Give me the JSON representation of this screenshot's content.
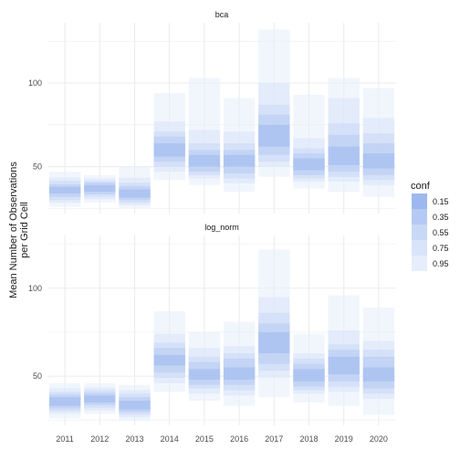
{
  "chart_data": {
    "type": "bar",
    "ylabel_line1": "Mean Number of Observations",
    "ylabel_line2": "per Grid Cell",
    "categories": [
      "2011",
      "2012",
      "2013",
      "2014",
      "2015",
      "2016",
      "2017",
      "2018",
      "2019",
      "2020"
    ],
    "y_ticks": [
      50,
      100
    ],
    "legend": {
      "title": "conf",
      "levels": [
        "0.15",
        "0.35",
        "0.55",
        "0.75",
        "0.95"
      ],
      "colors": [
        "#9db8ef",
        "#b5caf3",
        "#c8d8f6",
        "#d8e4f9",
        "#e6eefb"
      ],
      "position": "right"
    },
    "grid": true,
    "panels": [
      {
        "name": "bca",
        "ylim": [
          22,
          136
        ],
        "intervals": [
          {
            "x": "2011",
            "c15": [
              34,
              38
            ],
            "c35": [
              32,
              39.5
            ],
            "c55": [
              30,
              41.5
            ],
            "c75": [
              28.5,
              43.5
            ],
            "c95": [
              26,
              47
            ]
          },
          {
            "x": "2012",
            "c15": [
              35,
              39
            ],
            "c35": [
              33.5,
              40.5
            ],
            "c55": [
              32,
              41.5
            ],
            "c75": [
              30.5,
              43
            ],
            "c95": [
              28.5,
              45
            ]
          },
          {
            "x": "2013",
            "c15": [
              31.5,
              36.5
            ],
            "c35": [
              30,
              38.5
            ],
            "c55": [
              28.5,
              40.5
            ],
            "c75": [
              27,
              43.5
            ],
            "c95": [
              25,
              50
            ]
          },
          {
            "x": "2014",
            "c15": [
              56,
              64
            ],
            "c35": [
              53,
              68
            ],
            "c55": [
              50,
              71
            ],
            "c75": [
              47,
              77
            ],
            "c95": [
              42,
              94
            ]
          },
          {
            "x": "2015",
            "c15": [
              50,
              57
            ],
            "c35": [
              47,
              60
            ],
            "c55": [
              45,
              64
            ],
            "c75": [
              43,
              72
            ],
            "c95": [
              39,
              103
            ]
          },
          {
            "x": "2016",
            "c15": [
              50,
              57
            ],
            "c35": [
              46,
              60
            ],
            "c55": [
              43,
              64
            ],
            "c75": [
              40,
              71
            ],
            "c95": [
              35,
              91
            ]
          },
          {
            "x": "2017",
            "c15": [
              62,
              75
            ],
            "c35": [
              57,
              81
            ],
            "c55": [
              53,
              87
            ],
            "c75": [
              50,
              100
            ],
            "c95": [
              44,
              132
            ]
          },
          {
            "x": "2018",
            "c15": [
              48,
              55
            ],
            "c35": [
              45,
              58
            ],
            "c55": [
              43,
              61
            ],
            "c75": [
              41,
              67
            ],
            "c95": [
              37,
              93
            ]
          },
          {
            "x": "2019",
            "c15": [
              51,
              62
            ],
            "c35": [
              47,
              69
            ],
            "c55": [
              44,
              76
            ],
            "c75": [
              41,
              91
            ],
            "c95": [
              35,
              103
            ]
          },
          {
            "x": "2020",
            "c15": [
              49,
              58
            ],
            "c35": [
              45,
              64
            ],
            "c55": [
              42,
              70
            ],
            "c75": [
              39,
              79
            ],
            "c95": [
              32,
              97
            ]
          }
        ]
      },
      {
        "name": "log_norm",
        "ylim": [
          22,
          130
        ],
        "intervals": [
          {
            "x": "2011",
            "c15": [
              33,
              38
            ],
            "c35": [
              31.5,
              39.5
            ],
            "c55": [
              30,
              41
            ],
            "c75": [
              28.5,
              43
            ],
            "c95": [
              26,
              46
            ]
          },
          {
            "x": "2012",
            "c15": [
              35,
              39
            ],
            "c35": [
              33.5,
              40.5
            ],
            "c55": [
              32,
              42
            ],
            "c75": [
              30.5,
              43.5
            ],
            "c95": [
              28.5,
              46
            ]
          },
          {
            "x": "2013",
            "c15": [
              31,
              36
            ],
            "c35": [
              29.5,
              38
            ],
            "c55": [
              28,
              40
            ],
            "c75": [
              26.5,
              42
            ],
            "c95": [
              24.5,
              45
            ]
          },
          {
            "x": "2014",
            "c15": [
              56,
              62
            ],
            "c35": [
              52,
              66
            ],
            "c55": [
              49,
              69
            ],
            "c75": [
              46,
              74
            ],
            "c95": [
              41,
              87
            ]
          },
          {
            "x": "2015",
            "c15": [
              48,
              54
            ],
            "c35": [
              45,
              58
            ],
            "c55": [
              43,
              61
            ],
            "c75": [
              40,
              66
            ],
            "c95": [
              36,
              75
            ]
          },
          {
            "x": "2016",
            "c15": [
              48,
              55
            ],
            "c35": [
              45,
              60
            ],
            "c55": [
              42,
              63
            ],
            "c75": [
              39,
              67
            ],
            "c95": [
              33,
              81
            ]
          },
          {
            "x": "2017",
            "c15": [
              63,
              75
            ],
            "c35": [
              57,
              80
            ],
            "c55": [
              53,
              86
            ],
            "c75": [
              49,
              95
            ],
            "c95": [
              38,
              122
            ]
          },
          {
            "x": "2018",
            "c15": [
              47,
              54
            ],
            "c35": [
              44,
              57
            ],
            "c55": [
              42,
              60
            ],
            "c75": [
              40,
              63
            ],
            "c95": [
              35,
              74
            ]
          },
          {
            "x": "2019",
            "c15": [
              51,
              61
            ],
            "c35": [
              47,
              65
            ],
            "c55": [
              44,
              68
            ],
            "c75": [
              41,
              76
            ],
            "c95": [
              33,
              96
            ]
          },
          {
            "x": "2020",
            "c15": [
              47,
              55
            ],
            "c35": [
              43,
              61
            ],
            "c55": [
              40,
              65
            ],
            "c75": [
              37,
              70
            ],
            "c95": [
              28,
              89
            ]
          }
        ]
      }
    ]
  }
}
